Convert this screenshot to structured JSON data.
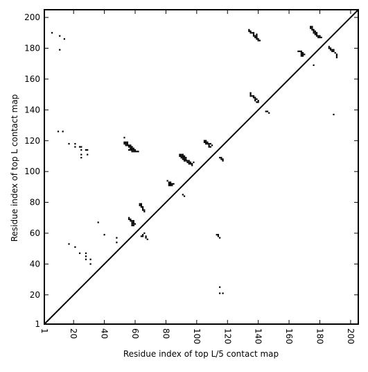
{
  "chart_data": {
    "type": "scatter",
    "title": "",
    "xlabel": "Residue index of top L/5 contact map",
    "ylabel": "Residue index of top L contact map",
    "xlim": [
      1,
      205
    ],
    "ylim": [
      1,
      205
    ],
    "x_ticks": [
      "1",
      "20",
      "40",
      "60",
      "80",
      "100",
      "120",
      "140",
      "160",
      "180",
      "200"
    ],
    "y_ticks": [
      "1",
      "20",
      "40",
      "60",
      "80",
      "100",
      "120",
      "140",
      "160",
      "180",
      "200"
    ],
    "x_tick_values": [
      1,
      20,
      40,
      60,
      80,
      100,
      120,
      140,
      160,
      180,
      200
    ],
    "y_tick_values": [
      1,
      20,
      40,
      60,
      80,
      100,
      120,
      140,
      160,
      180,
      200
    ],
    "tick_label_rotation_x": 90,
    "grid": false,
    "colors": {
      "points": "#000000",
      "diagonal": "#000000",
      "frame": "#000000"
    },
    "diagonal": {
      "from": [
        1,
        1
      ],
      "to": [
        205,
        205
      ]
    },
    "series": [
      {
        "values": [
          [
            6,
            190
          ],
          [
            11,
            188
          ],
          [
            14,
            186
          ],
          [
            11,
            179
          ],
          [
            10,
            126
          ],
          [
            13,
            126
          ],
          [
            17,
            118
          ],
          [
            21,
            118
          ],
          [
            21,
            116
          ],
          [
            24,
            116
          ],
          [
            25,
            116
          ],
          [
            25,
            114
          ],
          [
            28,
            114
          ],
          [
            29,
            114
          ],
          [
            25,
            111
          ],
          [
            29,
            111
          ],
          [
            25,
            109
          ],
          [
            36,
            67
          ],
          [
            40,
            59
          ],
          [
            48,
            57
          ],
          [
            48,
            54
          ],
          [
            17,
            53
          ],
          [
            21,
            51
          ],
          [
            24,
            47
          ],
          [
            28,
            47
          ],
          [
            28,
            45
          ],
          [
            28,
            43
          ],
          [
            31,
            43
          ],
          [
            31,
            40
          ],
          [
            53,
            122
          ],
          [
            53,
            119
          ],
          [
            54,
            119
          ],
          [
            55,
            119
          ],
          [
            53,
            118
          ],
          [
            54,
            118
          ],
          [
            55,
            118
          ],
          [
            54,
            117
          ],
          [
            55,
            117
          ],
          [
            56,
            117
          ],
          [
            57,
            117
          ],
          [
            56,
            116
          ],
          [
            57,
            116
          ],
          [
            58,
            116
          ],
          [
            57,
            115
          ],
          [
            58,
            115
          ],
          [
            59,
            115
          ],
          [
            56,
            114
          ],
          [
            57,
            114
          ],
          [
            58,
            114
          ],
          [
            59,
            114
          ],
          [
            60,
            114
          ],
          [
            58,
            113
          ],
          [
            59,
            113
          ],
          [
            60,
            113
          ],
          [
            61,
            113
          ],
          [
            62,
            113
          ],
          [
            56,
            70
          ],
          [
            56,
            69
          ],
          [
            57,
            69
          ],
          [
            57,
            68
          ],
          [
            58,
            68
          ],
          [
            59,
            68
          ],
          [
            58,
            67
          ],
          [
            59,
            67
          ],
          [
            58,
            66
          ],
          [
            59,
            66
          ],
          [
            60,
            66
          ],
          [
            58,
            65
          ],
          [
            59,
            65
          ],
          [
            63,
            79
          ],
          [
            64,
            79
          ],
          [
            63,
            78
          ],
          [
            64,
            78
          ],
          [
            64,
            77
          ],
          [
            65,
            77
          ],
          [
            65,
            76
          ],
          [
            65,
            75
          ],
          [
            66,
            75
          ],
          [
            66,
            74
          ],
          [
            66,
            60
          ],
          [
            65,
            59
          ],
          [
            64,
            58
          ],
          [
            65,
            58
          ],
          [
            67,
            58
          ],
          [
            67,
            57
          ],
          [
            68,
            56
          ],
          [
            81,
            94
          ],
          [
            82,
            93
          ],
          [
            83,
            93
          ],
          [
            82,
            92
          ],
          [
            83,
            92
          ],
          [
            84,
            92
          ],
          [
            85,
            92
          ],
          [
            82,
            91
          ],
          [
            83,
            91
          ],
          [
            84,
            91
          ],
          [
            91,
            85
          ],
          [
            92,
            84
          ],
          [
            89,
            111
          ],
          [
            90,
            111
          ],
          [
            91,
            111
          ],
          [
            89,
            110
          ],
          [
            90,
            110
          ],
          [
            91,
            110
          ],
          [
            92,
            110
          ],
          [
            90,
            109
          ],
          [
            91,
            109
          ],
          [
            92,
            109
          ],
          [
            93,
            109
          ],
          [
            91,
            108
          ],
          [
            92,
            108
          ],
          [
            93,
            108
          ],
          [
            92,
            107
          ],
          [
            93,
            107
          ],
          [
            94,
            107
          ],
          [
            95,
            107
          ],
          [
            94,
            106
          ],
          [
            95,
            106
          ],
          [
            96,
            106
          ],
          [
            98,
            106
          ],
          [
            95,
            105
          ],
          [
            96,
            105
          ],
          [
            97,
            105
          ],
          [
            97,
            104
          ],
          [
            105,
            120
          ],
          [
            106,
            120
          ],
          [
            105,
            119
          ],
          [
            106,
            119
          ],
          [
            107,
            119
          ],
          [
            106,
            118
          ],
          [
            107,
            118
          ],
          [
            108,
            118
          ],
          [
            109,
            118
          ],
          [
            108,
            117
          ],
          [
            110,
            117
          ],
          [
            108,
            116
          ],
          [
            109,
            116
          ],
          [
            115,
            109
          ],
          [
            116,
            109
          ],
          [
            116,
            108
          ],
          [
            117,
            108
          ],
          [
            117,
            107
          ],
          [
            113,
            59
          ],
          [
            114,
            59
          ],
          [
            114,
            58
          ],
          [
            115,
            57
          ],
          [
            115,
            25
          ],
          [
            115,
            21
          ],
          [
            117,
            21
          ],
          [
            134,
            192
          ],
          [
            134,
            191
          ],
          [
            135,
            191
          ],
          [
            135,
            190
          ],
          [
            136,
            190
          ],
          [
            137,
            190
          ],
          [
            137,
            189
          ],
          [
            139,
            189
          ],
          [
            137,
            188
          ],
          [
            138,
            188
          ],
          [
            139,
            188
          ],
          [
            138,
            187
          ],
          [
            139,
            187
          ],
          [
            139,
            186
          ],
          [
            140,
            186
          ],
          [
            140,
            185
          ],
          [
            141,
            185
          ],
          [
            135,
            151
          ],
          [
            135,
            150
          ],
          [
            135,
            149
          ],
          [
            136,
            149
          ],
          [
            137,
            149
          ],
          [
            137,
            148
          ],
          [
            138,
            148
          ],
          [
            138,
            147
          ],
          [
            139,
            147
          ],
          [
            138,
            146
          ],
          [
            140,
            146
          ],
          [
            139,
            145
          ],
          [
            140,
            145
          ],
          [
            145,
            139
          ],
          [
            146,
            139
          ],
          [
            147,
            138
          ],
          [
            166,
            178
          ],
          [
            167,
            178
          ],
          [
            168,
            178
          ],
          [
            168,
            177
          ],
          [
            169,
            177
          ],
          [
            168,
            176
          ],
          [
            169,
            176
          ],
          [
            170,
            176
          ],
          [
            168,
            175
          ],
          [
            169,
            175
          ],
          [
            174,
            194
          ],
          [
            175,
            194
          ],
          [
            174,
            193
          ],
          [
            175,
            193
          ],
          [
            175,
            192
          ],
          [
            176,
            192
          ],
          [
            176,
            191
          ],
          [
            177,
            191
          ],
          [
            176,
            190
          ],
          [
            177,
            190
          ],
          [
            178,
            190
          ],
          [
            177,
            189
          ],
          [
            178,
            189
          ],
          [
            178,
            188
          ],
          [
            179,
            188
          ],
          [
            180,
            188
          ],
          [
            179,
            187
          ],
          [
            180,
            187
          ],
          [
            181,
            187
          ],
          [
            176,
            169
          ],
          [
            186,
            181
          ],
          [
            186,
            180
          ],
          [
            187,
            180
          ],
          [
            187,
            179
          ],
          [
            188,
            179
          ],
          [
            189,
            179
          ],
          [
            188,
            178
          ],
          [
            189,
            178
          ],
          [
            190,
            177
          ],
          [
            191,
            176
          ],
          [
            191,
            175
          ],
          [
            191,
            174
          ],
          [
            189,
            137
          ]
        ]
      }
    ]
  }
}
